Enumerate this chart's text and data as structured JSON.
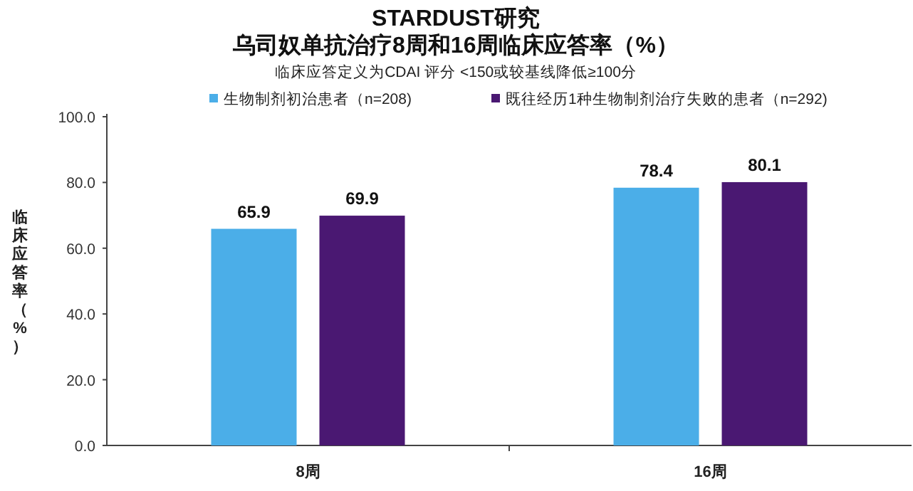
{
  "chart_data": {
    "type": "bar",
    "title": "STARDUST研究",
    "subtitle": "乌司奴单抗治疗8周和16周临床应答率（%）",
    "annotations": [
      "临床应答定义为CDAI 评分 <150或较基线降低≥100分"
    ],
    "ylabel": "临床应答率（%）",
    "categories": [
      "8周",
      "16周"
    ],
    "series": [
      {
        "name": "生物制剂初治患者（n=208)",
        "color": "#4baee8",
        "values": [
          65.9,
          78.4
        ]
      },
      {
        "name": "既往经历1种生物制剂治疗失败的患者（n=292)",
        "color": "#4a1872",
        "values": [
          69.9,
          80.1
        ]
      }
    ],
    "ylim": [
      0,
      100
    ],
    "yticks": [
      {
        "value": 0,
        "label": "0.0"
      },
      {
        "value": 20,
        "label": "20.0"
      },
      {
        "value": 40,
        "label": "40.0"
      },
      {
        "value": 60,
        "label": "60.0"
      },
      {
        "value": 80,
        "label": "80.0"
      },
      {
        "value": 100,
        "label": "100.0"
      }
    ],
    "data_labels": true,
    "legend": "top",
    "grid": false
  }
}
